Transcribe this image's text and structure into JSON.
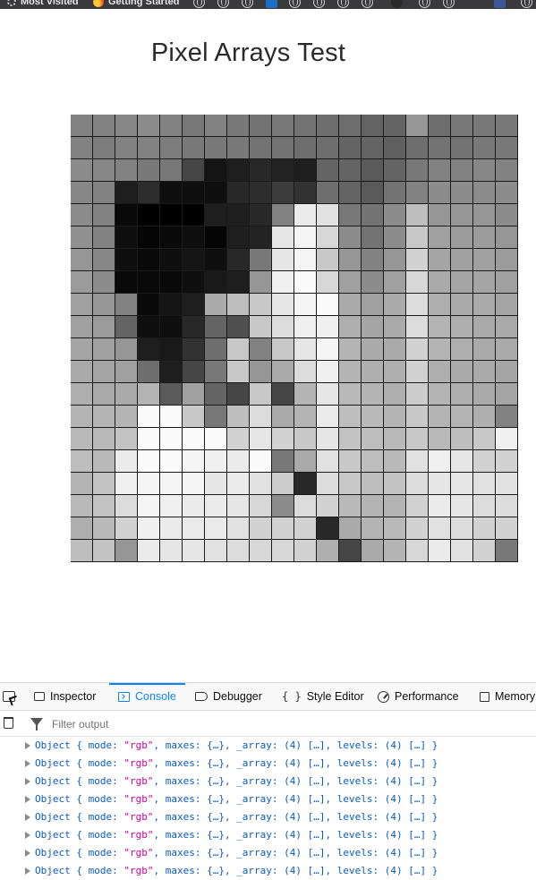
{
  "bookmarks": {
    "items": [
      {
        "label": "Most Visited",
        "icon": "gear-icon"
      },
      {
        "label": "Getting Started",
        "icon": "firefox-icon"
      }
    ]
  },
  "page": {
    "title": "Pixel Arrays Test"
  },
  "pixel_grid": {
    "cols": 20,
    "rows": 20,
    "gray_levels": [
      [
        130,
        130,
        135,
        140,
        130,
        120,
        130,
        120,
        115,
        120,
        115,
        110,
        110,
        100,
        100,
        150,
        110,
        120,
        120,
        120
      ],
      [
        130,
        125,
        130,
        130,
        125,
        120,
        120,
        120,
        115,
        115,
        110,
        110,
        100,
        100,
        95,
        110,
        115,
        115,
        120,
        120
      ],
      [
        140,
        135,
        130,
        120,
        120,
        70,
        20,
        30,
        40,
        35,
        30,
        100,
        100,
        90,
        100,
        120,
        130,
        130,
        135,
        130
      ],
      [
        135,
        130,
        30,
        45,
        15,
        15,
        15,
        40,
        45,
        60,
        50,
        110,
        100,
        90,
        115,
        130,
        140,
        140,
        140,
        140
      ],
      [
        140,
        130,
        10,
        0,
        0,
        0,
        30,
        30,
        40,
        130,
        235,
        225,
        120,
        115,
        140,
        190,
        150,
        150,
        150,
        140
      ],
      [
        145,
        130,
        15,
        5,
        10,
        15,
        5,
        30,
        35,
        230,
        245,
        215,
        140,
        115,
        140,
        200,
        160,
        155,
        155,
        150
      ],
      [
        150,
        135,
        15,
        10,
        15,
        20,
        15,
        40,
        120,
        230,
        245,
        200,
        150,
        130,
        150,
        210,
        165,
        160,
        160,
        155
      ],
      [
        155,
        140,
        10,
        10,
        10,
        15,
        25,
        30,
        150,
        240,
        250,
        215,
        160,
        140,
        160,
        215,
        170,
        165,
        165,
        160
      ],
      [
        160,
        150,
        130,
        10,
        20,
        30,
        170,
        190,
        200,
        230,
        245,
        250,
        170,
        160,
        170,
        220,
        175,
        170,
        170,
        165
      ],
      [
        160,
        155,
        100,
        15,
        15,
        40,
        100,
        80,
        200,
        220,
        240,
        240,
        175,
        165,
        170,
        220,
        180,
        175,
        170,
        170
      ],
      [
        165,
        160,
        150,
        30,
        25,
        50,
        110,
        200,
        130,
        200,
        230,
        245,
        180,
        170,
        170,
        210,
        180,
        175,
        170,
        170
      ],
      [
        170,
        165,
        160,
        110,
        30,
        70,
        120,
        200,
        150,
        170,
        220,
        240,
        180,
        175,
        175,
        210,
        175,
        170,
        170,
        165
      ],
      [
        175,
        170,
        170,
        180,
        90,
        160,
        100,
        70,
        200,
        70,
        180,
        230,
        185,
        180,
        175,
        205,
        180,
        175,
        170,
        165
      ],
      [
        180,
        180,
        180,
        250,
        250,
        200,
        120,
        190,
        220,
        170,
        180,
        235,
        190,
        185,
        180,
        200,
        180,
        180,
        175,
        130
      ],
      [
        185,
        185,
        195,
        250,
        250,
        250,
        250,
        210,
        230,
        210,
        200,
        230,
        195,
        190,
        185,
        200,
        185,
        190,
        200,
        240
      ],
      [
        190,
        185,
        235,
        250,
        250,
        245,
        240,
        235,
        250,
        120,
        170,
        225,
        200,
        190,
        185,
        225,
        240,
        230,
        210,
        210
      ],
      [
        180,
        195,
        240,
        245,
        245,
        245,
        230,
        235,
        225,
        205,
        40,
        220,
        200,
        190,
        195,
        220,
        230,
        230,
        225,
        225
      ],
      [
        185,
        195,
        220,
        245,
        240,
        235,
        235,
        230,
        215,
        140,
        220,
        210,
        185,
        180,
        180,
        210,
        235,
        230,
        220,
        220
      ],
      [
        175,
        185,
        210,
        240,
        235,
        235,
        235,
        225,
        210,
        210,
        210,
        40,
        170,
        180,
        185,
        210,
        225,
        220,
        210,
        210
      ],
      [
        190,
        195,
        150,
        235,
        230,
        230,
        225,
        220,
        215,
        215,
        210,
        175,
        70,
        170,
        180,
        215,
        235,
        225,
        210,
        120
      ]
    ]
  },
  "devtools": {
    "tabs": [
      {
        "label": "Inspector",
        "icon": "inspector-icon",
        "active": false
      },
      {
        "label": "Console",
        "icon": "console-icon",
        "active": true
      },
      {
        "label": "Debugger",
        "icon": "debugger-icon",
        "active": false
      },
      {
        "label": "Style Editor",
        "icon": "style-editor-icon",
        "active": false
      },
      {
        "label": "Performance",
        "icon": "performance-icon",
        "active": false
      },
      {
        "label": "Memory",
        "icon": "memory-icon",
        "active": false
      }
    ],
    "filter": {
      "placeholder": "Filter output",
      "value": ""
    },
    "log_text": {
      "prefix": "Object { mode: ",
      "mode_value": "\"rgb\"",
      "maxes": ", maxes: {…}, _array: (4) […], levels: (4) […] }"
    },
    "log_count": 8
  },
  "colors": {
    "accent": "#0a84ff",
    "string": "#d7008f",
    "object": "#0a5bc4",
    "bookmark_bar": "#3a3a3c"
  }
}
